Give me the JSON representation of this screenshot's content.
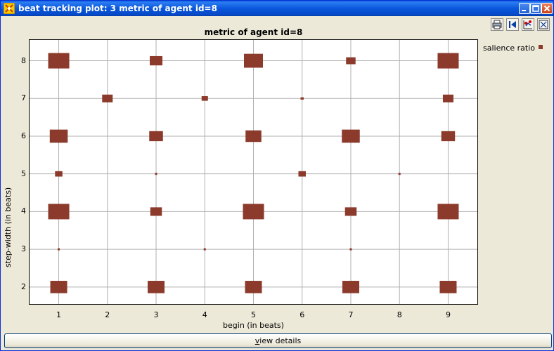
{
  "window": {
    "title": "beat tracking plot: 3 metric of agent id=8",
    "icon": "plot-app-icon"
  },
  "toolbar": {
    "buttons": [
      {
        "name": "print",
        "icon": "printer-icon"
      },
      {
        "name": "first",
        "icon": "skip-to-start-icon"
      },
      {
        "name": "marker",
        "icon": "marker-plot-icon"
      },
      {
        "name": "fit",
        "icon": "fit-to-window-icon"
      }
    ]
  },
  "chart_data": {
    "type": "scatter",
    "title": "metric of agent id=8",
    "xlabel": "begin (in beats)",
    "ylabel": "step-width (in beats)",
    "xlim": [
      0.4,
      9.6
    ],
    "ylim": [
      1.55,
      8.55
    ],
    "xticks": [
      1,
      2,
      3,
      4,
      5,
      6,
      7,
      8,
      9
    ],
    "yticks": [
      2,
      3,
      4,
      5,
      6,
      7,
      8
    ],
    "grid": true,
    "legend_position": "right",
    "marker": "square",
    "color": "#8b3a2b",
    "series": [
      {
        "name": "salience ratio",
        "points": [
          {
            "x": 1,
            "y": 8,
            "v": 1.0
          },
          {
            "x": 3,
            "y": 8,
            "v": 0.6
          },
          {
            "x": 5,
            "y": 8,
            "v": 0.9
          },
          {
            "x": 7,
            "y": 8,
            "v": 0.45
          },
          {
            "x": 9,
            "y": 8,
            "v": 1.0
          },
          {
            "x": 2,
            "y": 7,
            "v": 0.5
          },
          {
            "x": 4,
            "y": 7,
            "v": 0.3
          },
          {
            "x": 6,
            "y": 7,
            "v": 0.15
          },
          {
            "x": 9,
            "y": 7,
            "v": 0.5
          },
          {
            "x": 1,
            "y": 6,
            "v": 0.85
          },
          {
            "x": 3,
            "y": 6,
            "v": 0.65
          },
          {
            "x": 5,
            "y": 6,
            "v": 0.75
          },
          {
            "x": 7,
            "y": 6,
            "v": 0.85
          },
          {
            "x": 9,
            "y": 6,
            "v": 0.65
          },
          {
            "x": 1,
            "y": 5,
            "v": 0.35
          },
          {
            "x": 3,
            "y": 5,
            "v": 0.1
          },
          {
            "x": 6,
            "y": 5,
            "v": 0.35
          },
          {
            "x": 8,
            "y": 5,
            "v": 0.1
          },
          {
            "x": 1,
            "y": 4,
            "v": 1.0
          },
          {
            "x": 3,
            "y": 4,
            "v": 0.55
          },
          {
            "x": 5,
            "y": 4,
            "v": 1.0
          },
          {
            "x": 7,
            "y": 4,
            "v": 0.55
          },
          {
            "x": 9,
            "y": 4,
            "v": 1.0
          },
          {
            "x": 1,
            "y": 3,
            "v": 0.1
          },
          {
            "x": 4,
            "y": 3,
            "v": 0.1
          },
          {
            "x": 7,
            "y": 3,
            "v": 0.1
          },
          {
            "x": 1,
            "y": 2,
            "v": 0.8
          },
          {
            "x": 3,
            "y": 2,
            "v": 0.8
          },
          {
            "x": 5,
            "y": 2,
            "v": 0.8
          },
          {
            "x": 7,
            "y": 2,
            "v": 0.8
          },
          {
            "x": 9,
            "y": 2,
            "v": 0.8
          }
        ]
      }
    ]
  },
  "bottom": {
    "button_prefix": "v",
    "button_rest": "iew details"
  }
}
